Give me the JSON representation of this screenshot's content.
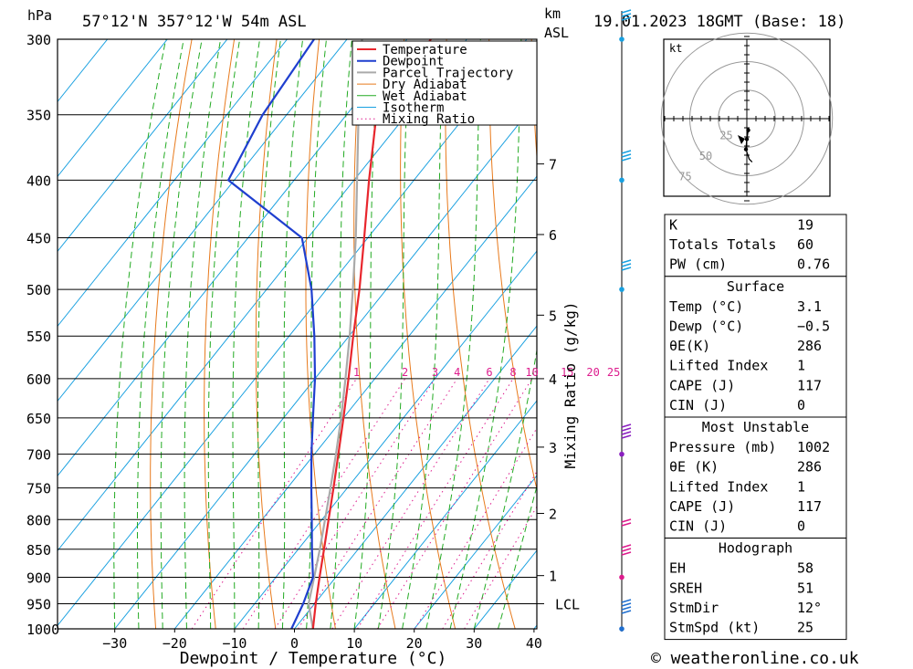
{
  "header": {
    "hpa_label": "hPa",
    "location": "57°12'N 357°12'W 54m ASL",
    "km_label": "km",
    "asl_label": "ASL",
    "datetime": "19.01.2023 18GMT (Base: 18)"
  },
  "footer": {
    "copyright": "© weatheronline.co.uk"
  },
  "chart_data": {
    "type": "line",
    "subtype": "skew-t log-p",
    "xlabel": "Dewpoint / Temperature (°C)",
    "ylabel": "hPa",
    "right_axis_label": "Mixing Ratio (g/kg)",
    "x_ticks": [
      -30,
      -20,
      -10,
      0,
      10,
      20,
      30,
      40
    ],
    "y_ticks": [
      300,
      350,
      400,
      450,
      500,
      550,
      600,
      650,
      700,
      750,
      800,
      850,
      900,
      950,
      1000
    ],
    "ylim": [
      1000,
      300
    ],
    "y_scale": "log",
    "km_ticks": [
      {
        "label": "7",
        "p": 387
      },
      {
        "label": "6",
        "p": 447
      },
      {
        "label": "5",
        "p": 527
      },
      {
        "label": "4",
        "p": 600
      },
      {
        "label": "3",
        "p": 690
      },
      {
        "label": "2",
        "p": 790
      },
      {
        "label": "1",
        "p": 897
      },
      {
        "label": "LCL",
        "p": 950
      }
    ],
    "mixing_ratio_labels": [
      "1",
      "2",
      "3",
      "4",
      "6",
      "8",
      "10",
      "15",
      "20",
      "25"
    ],
    "legend": [
      "Temperature",
      "Dewpoint",
      "Parcel Trajectory",
      "Dry Adiabat",
      "Wet Adiabat",
      "Isotherm",
      "Mixing Ratio"
    ],
    "colors": {
      "temperature": "#e8262d",
      "dewpoint": "#1f3fcf",
      "parcel": "#aaaaaa",
      "dry_adiabat": "#e87a1c",
      "wet_adiabat": "#22aa22",
      "isotherm": "#18a0e0",
      "mixing_ratio": "#dd1b8d"
    },
    "series": [
      {
        "name": "Temperature",
        "points": [
          {
            "p": 1000,
            "t": 3.1
          },
          {
            "p": 950,
            "t": 0.2
          },
          {
            "p": 900,
            "t": -2.7
          },
          {
            "p": 850,
            "t": -5.7
          },
          {
            "p": 800,
            "t": -8.9
          },
          {
            "p": 750,
            "t": -12.3
          },
          {
            "p": 700,
            "t": -16.0
          },
          {
            "p": 650,
            "t": -20.0
          },
          {
            "p": 600,
            "t": -24.4
          },
          {
            "p": 550,
            "t": -29.3
          },
          {
            "p": 500,
            "t": -34.5
          },
          {
            "p": 450,
            "t": -40.6
          },
          {
            "p": 400,
            "t": -47.5
          },
          {
            "p": 350,
            "t": -55.0
          },
          {
            "p": 300,
            "t": -56.0
          }
        ]
      },
      {
        "name": "Dewpoint",
        "points": [
          {
            "p": 1000,
            "t": -0.5
          },
          {
            "p": 950,
            "t": -1.9
          },
          {
            "p": 900,
            "t": -3.8
          },
          {
            "p": 850,
            "t": -7.7
          },
          {
            "p": 800,
            "t": -11.7
          },
          {
            "p": 750,
            "t": -16.0
          },
          {
            "p": 700,
            "t": -20.5
          },
          {
            "p": 650,
            "t": -25.1
          },
          {
            "p": 600,
            "t": -30.0
          },
          {
            "p": 550,
            "t": -35.8
          },
          {
            "p": 500,
            "t": -42.5
          },
          {
            "p": 450,
            "t": -51.0
          },
          {
            "p": 400,
            "t": -71.0
          },
          {
            "p": 350,
            "t": -74.0
          },
          {
            "p": 300,
            "t": -75.5
          }
        ]
      },
      {
        "name": "Parcel Trajectory",
        "points": [
          {
            "p": 1000,
            "t": 3.1
          },
          {
            "p": 950,
            "t": -1.0
          },
          {
            "p": 900,
            "t": -3.6
          },
          {
            "p": 850,
            "t": -6.4
          },
          {
            "p": 800,
            "t": -9.5
          },
          {
            "p": 750,
            "t": -12.8
          },
          {
            "p": 700,
            "t": -16.4
          },
          {
            "p": 650,
            "t": -20.4
          },
          {
            "p": 600,
            "t": -24.9
          },
          {
            "p": 550,
            "t": -29.9
          },
          {
            "p": 500,
            "t": -35.6
          },
          {
            "p": 450,
            "t": -42.0
          },
          {
            "p": 400,
            "t": -49.5
          },
          {
            "p": 350,
            "t": -58.0
          },
          {
            "p": 300,
            "t": -67.5
          }
        ]
      }
    ],
    "hodograph": {
      "unit_label": "kt",
      "ring_labels": [
        "25",
        "50",
        "75"
      ],
      "points": [
        {
          "dir": 200,
          "spd": 12
        },
        {
          "dir": 180,
          "spd": 20
        },
        {
          "dir": 175,
          "spd": 30
        },
        {
          "dir": 190,
          "spd": 40
        },
        {
          "dir": 200,
          "spd": 45
        }
      ]
    }
  },
  "indices": {
    "rows": [
      {
        "label": "K",
        "value": "19"
      },
      {
        "label": "Totals Totals",
        "value": "60"
      },
      {
        "label": "PW (cm)",
        "value": "0.76"
      }
    ]
  },
  "surface": {
    "title": "Surface",
    "rows": [
      {
        "label": "Temp (°C)",
        "value": "3.1"
      },
      {
        "label": "Dewp (°C)",
        "value": "-0.5"
      },
      {
        "label": "θE(K)",
        "value": "286"
      },
      {
        "label": "Lifted Index",
        "value": "1"
      },
      {
        "label": "CAPE (J)",
        "value": "117"
      },
      {
        "label": "CIN (J)",
        "value": "0"
      }
    ]
  },
  "most_unstable": {
    "title": "Most Unstable",
    "rows": [
      {
        "label": "Pressure (mb)",
        "value": "1002"
      },
      {
        "label": "θE (K)",
        "value": "286"
      },
      {
        "label": "Lifted Index",
        "value": "1"
      },
      {
        "label": "CAPE (J)",
        "value": "117"
      },
      {
        "label": "CIN (J)",
        "value": "0"
      }
    ]
  },
  "hodograph_table": {
    "title": "Hodograph",
    "rows": [
      {
        "label": "EH",
        "value": "58"
      },
      {
        "label": "SREH",
        "value": "51"
      },
      {
        "label": "StmDir",
        "value": "12°"
      },
      {
        "label": "StmSpd (kt)",
        "value": "25"
      }
    ]
  }
}
